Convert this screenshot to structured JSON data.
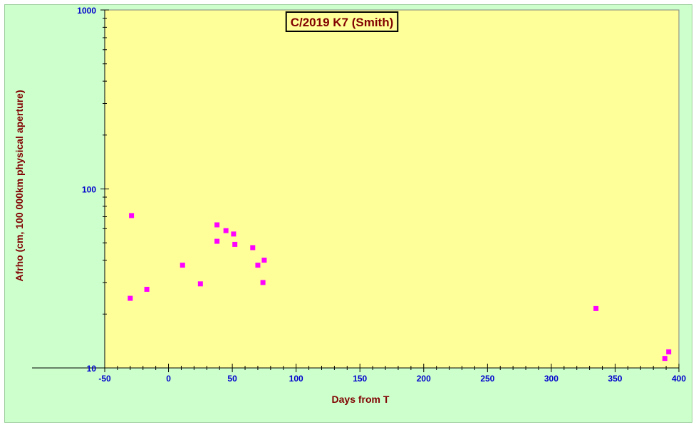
{
  "chart_data": {
    "type": "scatter",
    "title": "C/2019 K7 (Smith)",
    "xlabel": "Days from  T",
    "ylabel": "Afrho (cm, 100 000km physical aperture)",
    "xlim": [
      -50,
      400
    ],
    "ylim": [
      10,
      1000
    ],
    "y_scale": "log",
    "x_ticks": [
      -50,
      0,
      50,
      100,
      150,
      200,
      250,
      300,
      350,
      400
    ],
    "y_ticks": [
      10,
      100,
      1000
    ],
    "grid": false,
    "series": [
      {
        "x": [
          -30,
          -29,
          -17,
          11,
          25,
          38,
          38,
          45,
          51,
          52,
          66,
          70,
          74,
          75,
          335,
          389,
          392
        ],
        "y": [
          24.5,
          71,
          27.5,
          37.5,
          29.5,
          63,
          51,
          58.5,
          56,
          49,
          47,
          37.5,
          30,
          40,
          21.5,
          11.3,
          12.3
        ]
      }
    ],
    "colors": {
      "background": "#ccffcc",
      "plot_area": "#ffff99",
      "marker": "#ff00ff",
      "tick_labels": "#0000cc",
      "axis_titles": "#800000",
      "title_text": "#800000"
    }
  }
}
